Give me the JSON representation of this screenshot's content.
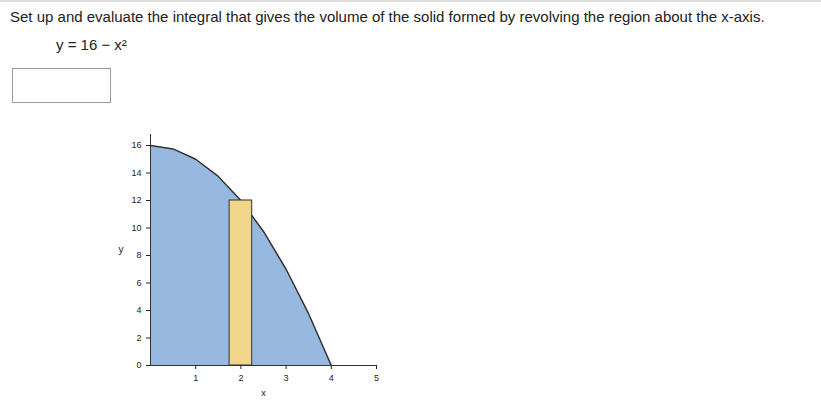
{
  "chart_data": {
    "type": "area",
    "title": "Set up and evaluate the integral that gives the volume of the solid formed by revolving the region about the x-axis.",
    "subtitle": "y = 16 − x²",
    "x": [
      0,
      0.5,
      1,
      1.5,
      2,
      2.5,
      3,
      3.5,
      4
    ],
    "values": [
      16,
      15.75,
      15,
      13.75,
      12,
      9.75,
      7,
      3.75,
      0
    ],
    "color": "#97b9e0",
    "rect_x": [
      1.75,
      2.25
    ],
    "rect_value": 12,
    "rect_color": "#f0d58a",
    "x_label": "x",
    "y_label": "y",
    "xlim": [
      0,
      5
    ],
    "ylim": [
      0,
      16.8
    ],
    "xticks": [
      1,
      2,
      3,
      4,
      5
    ],
    "yticks": [
      0,
      2,
      4,
      6,
      8,
      10,
      12,
      14,
      16
    ],
    "grid": false
  }
}
